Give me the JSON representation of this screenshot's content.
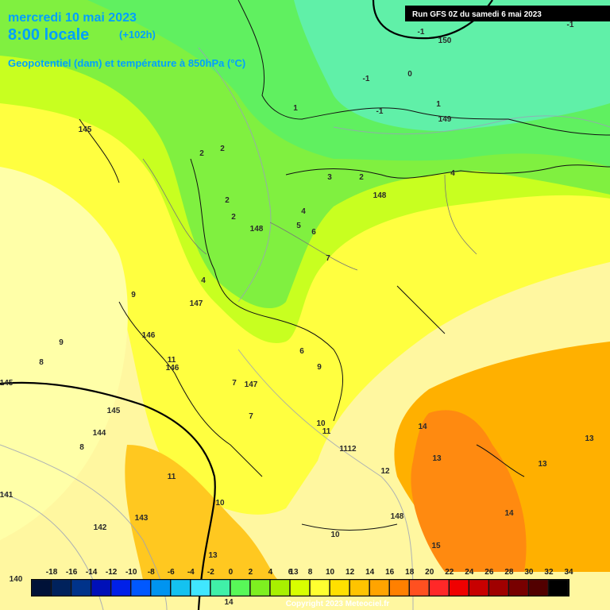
{
  "header": {
    "date": "mercredi 10 mai 2023",
    "time": "8:00 locale",
    "lead": "(+102h)",
    "field": "Geopotentiel (dam) et température à 850hPa (°C)",
    "run": "Run GFS 0Z du samedi 6 mai 2023"
  },
  "legend": {
    "labels": [
      "-18",
      "-16",
      "-14",
      "-12",
      "-10",
      "-8",
      "-6",
      "-4",
      "-2",
      "0",
      "2",
      "4",
      "6",
      "8",
      "10",
      "12",
      "14",
      "16",
      "18",
      "20",
      "22",
      "24",
      "26",
      "28",
      "30",
      "32",
      "34"
    ],
    "colors": [
      "#001238",
      "#00225c",
      "#00338a",
      "#0010b8",
      "#0020e8",
      "#0058ff",
      "#0094f0",
      "#14c2f0",
      "#40e6ff",
      "#40f0a8",
      "#58f858",
      "#7ef020",
      "#a8f000",
      "#d8ff00",
      "#ffff30",
      "#ffe000",
      "#ffc400",
      "#ffa400",
      "#ff8000",
      "#ff5020",
      "#ff2828",
      "#f00000",
      "#c80000",
      "#a00000",
      "#780000",
      "#520000",
      "#000000"
    ]
  },
  "copyright": "Copyright 2023 Meteociel.fr",
  "map_labels": [
    "-1",
    "150",
    "-1",
    "-1",
    "0",
    "-1",
    "1",
    "1",
    "149",
    "145",
    "2",
    "2",
    "3",
    "2",
    "148",
    "2",
    "2",
    "4",
    "4",
    "5",
    "6",
    "148",
    "7",
    "4",
    "147",
    "9",
    "146",
    "9",
    "8",
    "11",
    "146",
    "6",
    "9",
    "7",
    "147",
    "7",
    "145",
    "145",
    "144",
    "8",
    "10",
    "11",
    "1112",
    "12",
    "14",
    "13",
    "13",
    "13",
    "11",
    "10",
    "143",
    "142",
    "141",
    "10",
    "14",
    "148",
    "13",
    "15",
    "140",
    "14",
    "13"
  ]
}
